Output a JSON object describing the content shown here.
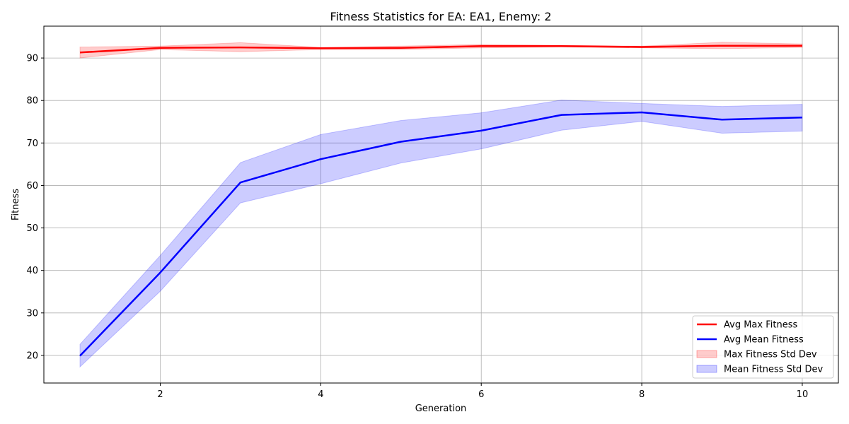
{
  "chart_data": {
    "type": "line",
    "title": "Fitness Statistics for EA: EA1, Enemy: 2",
    "xlabel": "Generation",
    "ylabel": "Fitness",
    "x": [
      1,
      2,
      3,
      4,
      5,
      6,
      7,
      8,
      9,
      10
    ],
    "xlim": [
      0.55,
      10.45
    ],
    "ylim": [
      13.5,
      97.5
    ],
    "x_ticks": [
      2,
      4,
      6,
      8,
      10
    ],
    "y_ticks": [
      20,
      30,
      40,
      50,
      60,
      70,
      80,
      90
    ],
    "grid": true,
    "legend_position": "bottom-right",
    "series": [
      {
        "name": "Avg Max Fitness",
        "color": "#ff0000",
        "values": [
          91.3,
          92.4,
          92.5,
          92.3,
          92.4,
          92.8,
          92.8,
          92.6,
          92.9,
          92.9
        ]
      },
      {
        "name": "Avg Mean Fitness",
        "color": "#0000ff",
        "values": [
          19.9,
          39.5,
          60.7,
          66.2,
          70.3,
          72.9,
          76.6,
          77.2,
          75.5,
          76.0
        ]
      }
    ],
    "bands": [
      {
        "name": "Max Fitness Std Dev",
        "color": "#ff0000",
        "opacity": 0.2,
        "lower": [
          90.0,
          92.0,
          91.5,
          92.0,
          92.0,
          92.4,
          92.6,
          92.4,
          92.2,
          92.5
        ],
        "upper": [
          92.6,
          92.8,
          93.6,
          92.5,
          92.8,
          93.2,
          93.0,
          92.8,
          93.7,
          93.3
        ]
      },
      {
        "name": "Mean Fitness Std Dev",
        "color": "#0000ff",
        "opacity": 0.2,
        "lower": [
          17.3,
          35.1,
          55.9,
          60.4,
          65.3,
          68.6,
          73.0,
          75.1,
          72.3,
          72.8
        ],
        "upper": [
          22.6,
          43.5,
          65.4,
          72.0,
          75.3,
          77.1,
          80.1,
          79.3,
          78.6,
          79.1
        ]
      }
    ]
  }
}
